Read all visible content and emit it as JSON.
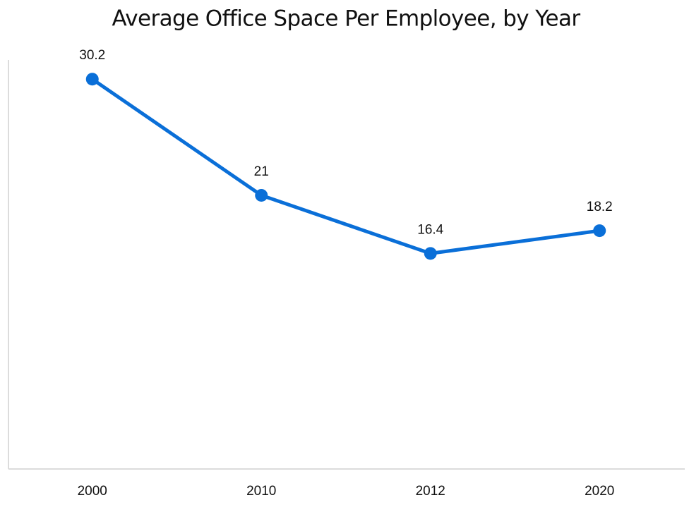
{
  "chart_data": {
    "type": "line",
    "title": "Average Office Space Per Employee, by Year",
    "categories": [
      "2000",
      "2010",
      "2012",
      "2020"
    ],
    "values": [
      30.2,
      21,
      16.4,
      18.2
    ],
    "color": "#0a6fd8",
    "ylim": [
      0,
      32
    ]
  }
}
